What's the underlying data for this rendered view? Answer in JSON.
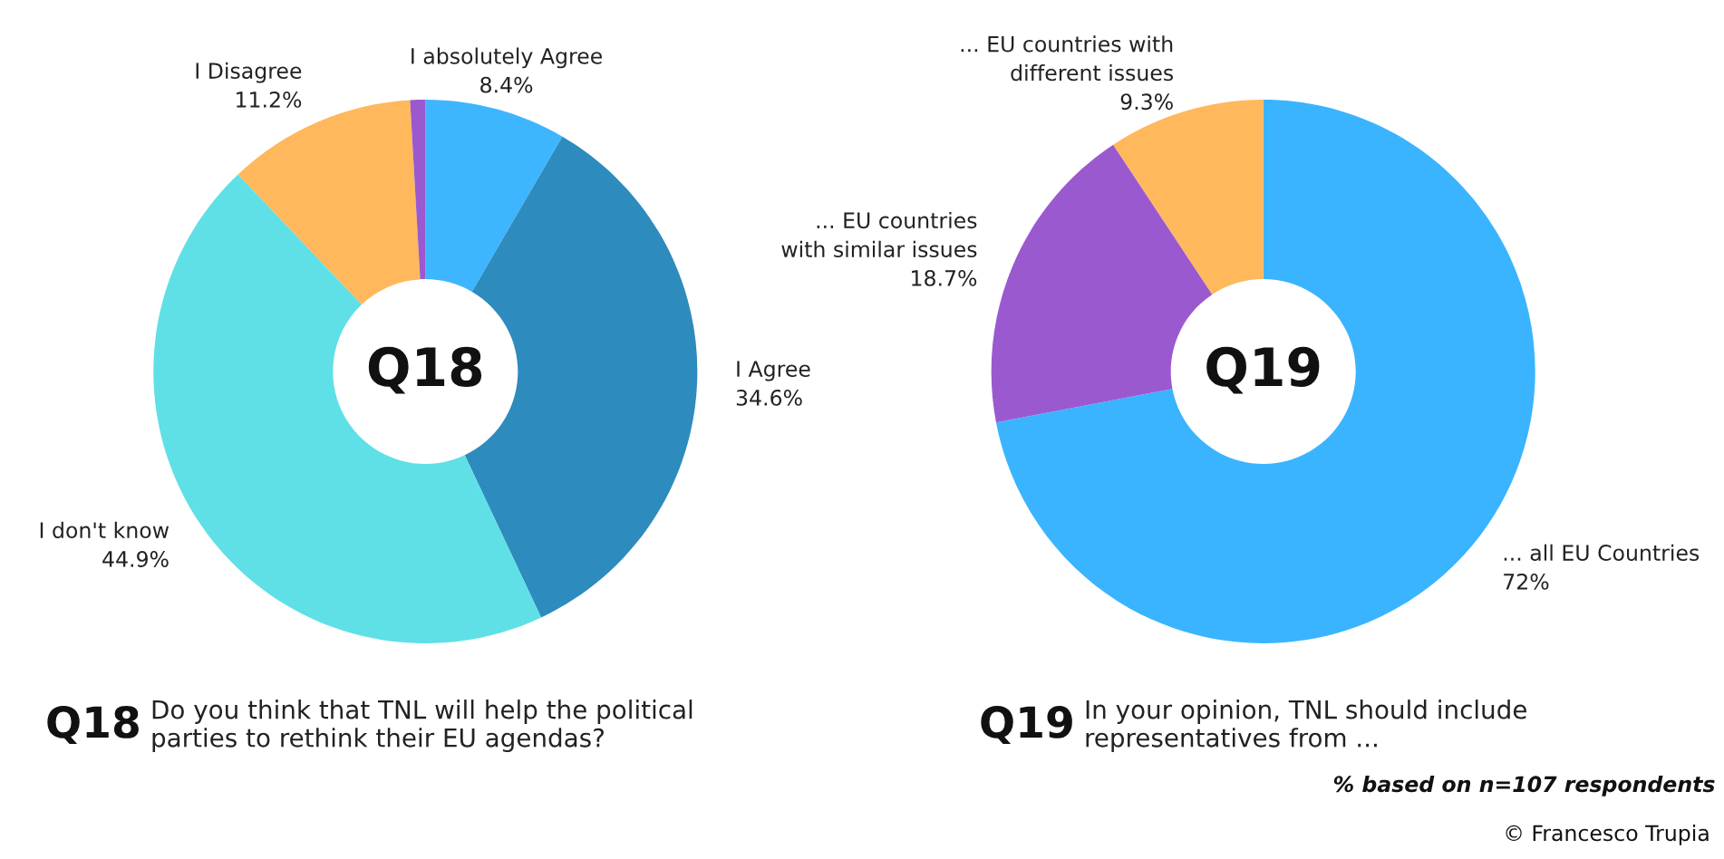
{
  "chart_data": [
    {
      "type": "donut",
      "categories": [
        "I absolutely Agree",
        "I Agree",
        "I don't know",
        "I Disagree",
        null
      ],
      "values": [
        8.4,
        34.6,
        44.9,
        11.2,
        0.9
      ],
      "colors": [
        "#3db5ff",
        "#2e8bbd",
        "#5ee0e6",
        "#ffb85c",
        "#9b59d0"
      ],
      "value_labels": [
        "8.4%",
        "34.6%",
        "44.9%",
        "11.2%",
        null
      ],
      "annotations": [
        "Q18",
        "Q18",
        "Do you think that TNL will help the political\nparties to rethink their EU agendas?"
      ]
    },
    {
      "type": "donut",
      "categories": [
        "... all EU Countries",
        "... EU countries\nwith similar issues",
        "... EU countries with\ndifferent issues"
      ],
      "values": [
        72,
        18.7,
        9.3
      ],
      "colors": [
        "#3ab4ff",
        "#9b59d0",
        "#ffb85c"
      ],
      "value_labels": [
        "72%",
        "18.7%",
        "9.3%"
      ],
      "annotations": [
        "Q19",
        "Q19",
        "In your opinion, TNL should include\nrepresentatives from ...",
        "% based on n=107 respondents",
        "© Francesco Trupia"
      ]
    }
  ]
}
